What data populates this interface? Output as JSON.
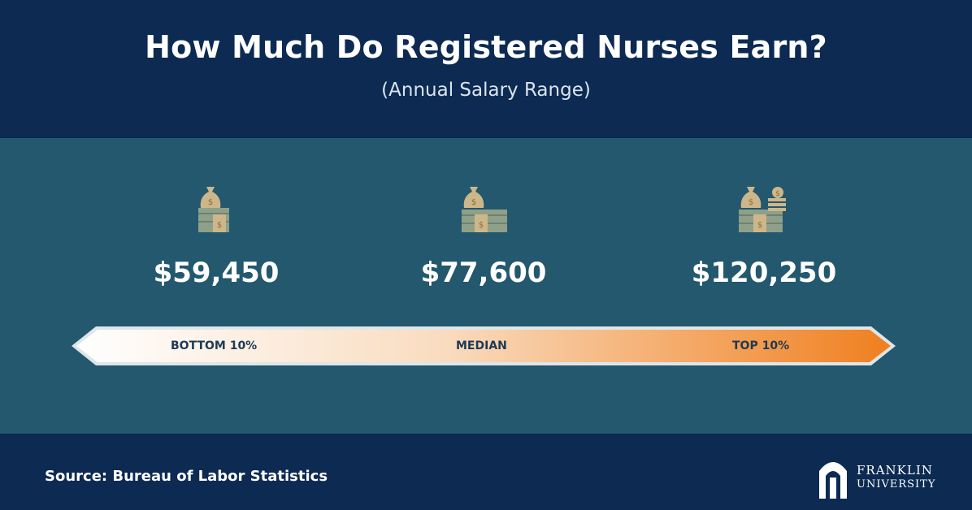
{
  "title": "How Much Do Registered Nurses Earn?",
  "subtitle": "(Annual Salary Range)",
  "chart_data": {
    "type": "range",
    "categories": [
      "BOTTOM 10%",
      "MEDIAN",
      "TOP 10%"
    ],
    "values": [
      59450,
      77600,
      120250
    ],
    "value_labels": [
      "$59,450",
      "$77,600",
      "$120,250"
    ],
    "title": "How Much Do Registered Nurses Earn?",
    "subtitle": "(Annual Salary Range)"
  },
  "footer": {
    "source": "Source: Bureau of Labor Statistics",
    "logo_line1": "FRANKLIN",
    "logo_line2": "UNIVERSITY"
  },
  "icons": [
    "money-bag-stack-icon",
    "money-bag-stack-icon",
    "money-bag-coins-icon"
  ],
  "colors": {
    "header_bg": "#0c2a52",
    "panel_bg": "#23586e",
    "band_start": "#ffffff",
    "band_end": "#f07f1f",
    "icon_tan": "#cdb78a",
    "icon_green": "#8ea08a"
  }
}
